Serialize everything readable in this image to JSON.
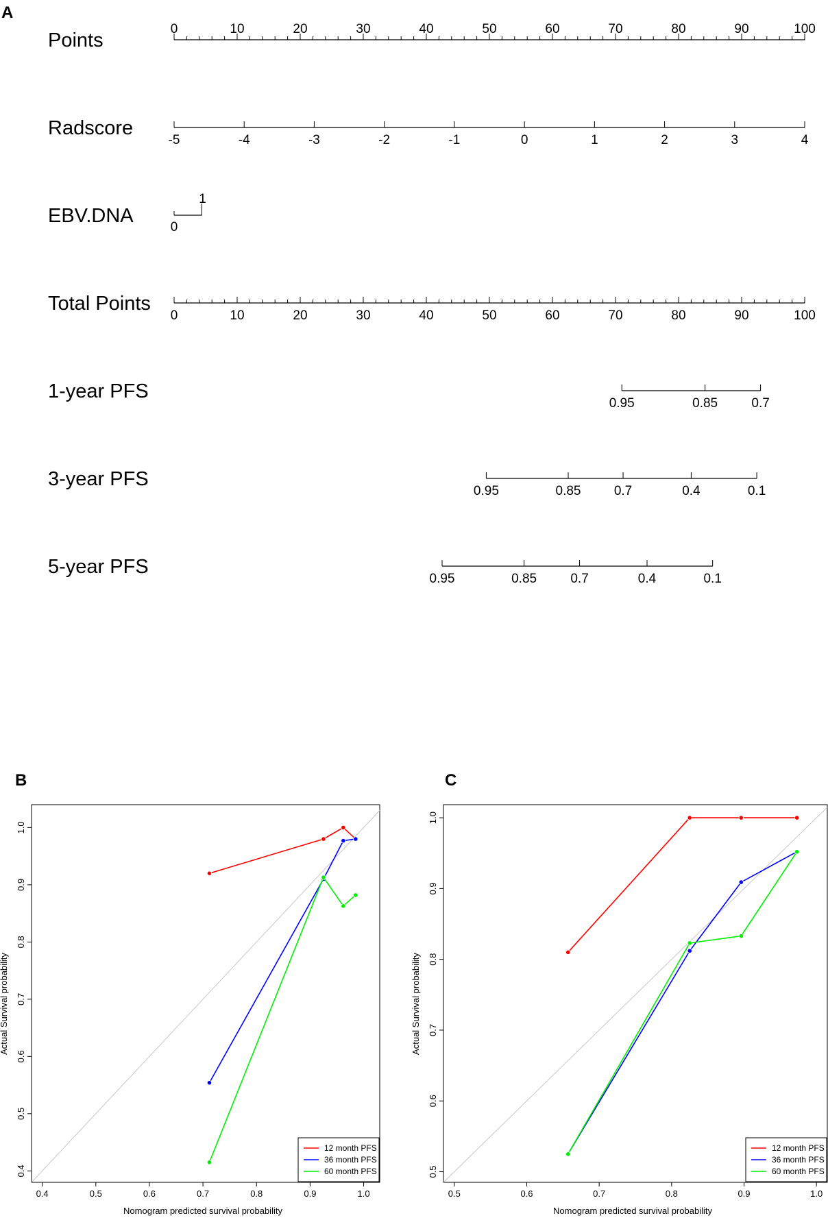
{
  "panels": {
    "a": "A",
    "b": "B",
    "c": "C"
  },
  "chart_data": [
    {
      "type": "nomogram",
      "panel": "A",
      "rows": [
        {
          "label": "Points",
          "axis_min": 0,
          "axis_max": 100,
          "ticks": [
            {
              "v": 0,
              "t": "0"
            },
            {
              "v": 10,
              "t": "10"
            },
            {
              "v": 20,
              "t": "20"
            },
            {
              "v": 30,
              "t": "30"
            },
            {
              "v": 40,
              "t": "40"
            },
            {
              "v": 50,
              "t": "50"
            },
            {
              "v": 60,
              "t": "60"
            },
            {
              "v": 70,
              "t": "70"
            },
            {
              "v": 80,
              "t": "80"
            },
            {
              "v": 90,
              "t": "90"
            },
            {
              "v": 100,
              "t": "100"
            }
          ],
          "minor_step": 2,
          "label_pos": "above"
        },
        {
          "label": "Radscore",
          "axis_min": 0,
          "axis_max": 100,
          "ticks": [
            {
              "v": 0,
              "t": "-5"
            },
            {
              "v": 11.11,
              "t": "-4"
            },
            {
              "v": 22.22,
              "t": "-3"
            },
            {
              "v": 33.33,
              "t": "-2"
            },
            {
              "v": 44.44,
              "t": "-1"
            },
            {
              "v": 55.56,
              "t": "0"
            },
            {
              "v": 66.67,
              "t": "1"
            },
            {
              "v": 77.78,
              "t": "2"
            },
            {
              "v": 88.89,
              "t": "3"
            },
            {
              "v": 100,
              "t": "4"
            }
          ],
          "label_pos": "below"
        },
        {
          "label": "EBV.DNA",
          "axis_min": 0,
          "axis_max": 100,
          "ticks": [
            {
              "v": 0,
              "t": "0"
            },
            {
              "v": 4.4,
              "t": "1"
            }
          ],
          "label_pos": "ebv"
        },
        {
          "label": "Total Points",
          "axis_min": 0,
          "axis_max": 100,
          "ticks": [
            {
              "v": 0,
              "t": "0"
            },
            {
              "v": 10,
              "t": "10"
            },
            {
              "v": 20,
              "t": "20"
            },
            {
              "v": 30,
              "t": "30"
            },
            {
              "v": 40,
              "t": "40"
            },
            {
              "v": 50,
              "t": "50"
            },
            {
              "v": 60,
              "t": "60"
            },
            {
              "v": 70,
              "t": "70"
            },
            {
              "v": 80,
              "t": "80"
            },
            {
              "v": 90,
              "t": "90"
            },
            {
              "v": 100,
              "t": "100"
            }
          ],
          "minor_step": 2,
          "label_pos": "below"
        },
        {
          "label": "1-year PFS",
          "axis_min": 0,
          "axis_max": 100,
          "ticks": [
            {
              "v": 71,
              "t": "0.95"
            },
            {
              "v": 84.2,
              "t": "0.85"
            },
            {
              "v": 93,
              "t": "0.7"
            }
          ],
          "label_pos": "below"
        },
        {
          "label": "3-year PFS",
          "axis_min": 0,
          "axis_max": 100,
          "ticks": [
            {
              "v": 49.5,
              "t": "0.95"
            },
            {
              "v": 62.5,
              "t": "0.85"
            },
            {
              "v": 71.2,
              "t": "0.7"
            },
            {
              "v": 82,
              "t": "0.4"
            },
            {
              "v": 92.4,
              "t": "0.1"
            }
          ],
          "label_pos": "below"
        },
        {
          "label": "5-year PFS",
          "axis_min": 0,
          "axis_max": 100,
          "ticks": [
            {
              "v": 42.5,
              "t": "0.95"
            },
            {
              "v": 55.5,
              "t": "0.85"
            },
            {
              "v": 64.3,
              "t": "0.7"
            },
            {
              "v": 75,
              "t": "0.4"
            },
            {
              "v": 85.4,
              "t": "0.1"
            }
          ],
          "label_pos": "below"
        }
      ]
    },
    {
      "type": "line",
      "panel": "B",
      "xlabel": "Nomogram predicted survival probability",
      "ylabel": "Actual Survival probability",
      "xlim": [
        0.38,
        1.03
      ],
      "ylim": [
        0.38,
        1.04
      ],
      "xticks": [
        0.4,
        0.5,
        0.6,
        0.7,
        0.8,
        0.9,
        1.0
      ],
      "xtick_labels": [
        "0.4",
        "0.5",
        "0.6",
        "0.7",
        "0.8",
        "0.9",
        "1.0"
      ],
      "yticks": [
        0.4,
        0.5,
        0.6,
        0.7,
        0.8,
        0.9,
        1.0
      ],
      "ytick_labels": [
        "0.4",
        "0.5",
        "0.6",
        "0.7",
        "0.8",
        "0.9",
        "1.0"
      ],
      "diagonal": true,
      "legend_position": "bottom-right",
      "series": [
        {
          "name": "12 month PFS",
          "color": "#ff0000",
          "x": [
            0.712,
            0.925,
            0.962,
            0.985
          ],
          "y": [
            0.92,
            0.98,
            1.0,
            0.98
          ]
        },
        {
          "name": "36 month PFS",
          "color": "#0000ff",
          "x": [
            0.712,
            0.925,
            0.962,
            0.985
          ],
          "y": [
            0.554,
            0.91,
            0.977,
            0.98
          ]
        },
        {
          "name": "60 month PFS",
          "color": "#00ee00",
          "x": [
            0.712,
            0.925,
            0.962,
            0.985
          ],
          "y": [
            0.415,
            0.913,
            0.863,
            0.882
          ]
        }
      ]
    },
    {
      "type": "line",
      "panel": "C",
      "xlabel": "Nomogram predicted survival probability",
      "ylabel": "Actual Survival probability",
      "xlim": [
        0.485,
        1.015
      ],
      "ylim": [
        0.485,
        1.0185
      ],
      "xticks": [
        0.5,
        0.6,
        0.7,
        0.8,
        0.9,
        1.0
      ],
      "xtick_labels": [
        "0.5",
        "0.6",
        "0.7",
        "0.8",
        "0.9",
        "1.0"
      ],
      "yticks": [
        0.5,
        0.6,
        0.7,
        0.8,
        0.9,
        1.0
      ],
      "ytick_labels": [
        "0.5",
        "0.6",
        "0.7",
        "0.8",
        "0.9",
        "1.0"
      ],
      "diagonal": true,
      "legend_position": "bottom-right",
      "series": [
        {
          "name": "12 month PFS",
          "color": "#ff0000",
          "x": [
            0.657,
            0.825,
            0.896,
            0.973
          ],
          "y": [
            0.81,
            1.0,
            1.0,
            1.0
          ]
        },
        {
          "name": "36 month PFS",
          "color": "#0000ff",
          "x": [
            0.657,
            0.825,
            0.896,
            0.973
          ],
          "y": [
            0.525,
            0.812,
            0.909,
            0.952
          ]
        },
        {
          "name": "60 month PFS",
          "color": "#00ee00",
          "x": [
            0.657,
            0.825,
            0.896,
            0.973
          ],
          "y": [
            0.525,
            0.823,
            0.833,
            0.952
          ]
        }
      ]
    }
  ]
}
